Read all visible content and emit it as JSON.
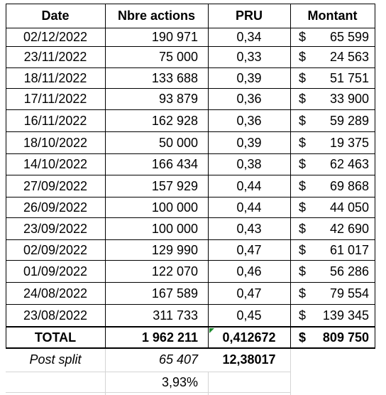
{
  "table": {
    "headers": {
      "date": "Date",
      "actions": "Nbre actions",
      "pru": "PRU",
      "montant": "Montant"
    },
    "currency_symbol": "$",
    "rows": [
      {
        "date": "02/12/2022",
        "actions": "190 971",
        "pru": "0,34",
        "montant": "65 599"
      },
      {
        "date": "23/11/2022",
        "actions": "75 000",
        "pru": "0,33",
        "montant": "24 563"
      },
      {
        "date": "18/11/2022",
        "actions": "133 688",
        "pru": "0,39",
        "montant": "51 751"
      },
      {
        "date": "17/11/2022",
        "actions": "93 879",
        "pru": "0,36",
        "montant": "33 900"
      },
      {
        "date": "16/11/2022",
        "actions": "162 928",
        "pru": "0,36",
        "montant": "59 289"
      },
      {
        "date": "18/10/2022",
        "actions": "50 000",
        "pru": "0,39",
        "montant": "19 375"
      },
      {
        "date": "14/10/2022",
        "actions": "166 434",
        "pru": "0,38",
        "montant": "62 463"
      },
      {
        "date": "27/09/2022",
        "actions": "157 929",
        "pru": "0,44",
        "montant": "69 868"
      },
      {
        "date": "26/09/2022",
        "actions": "100 000",
        "pru": "0,44",
        "montant": "44 050"
      },
      {
        "date": "23/09/2022",
        "actions": "100 000",
        "pru": "0,43",
        "montant": "42 690"
      },
      {
        "date": "02/09/2022",
        "actions": "129 990",
        "pru": "0,47",
        "montant": "61 017"
      },
      {
        "date": "01/09/2022",
        "actions": "122 070",
        "pru": "0,46",
        "montant": "56 286"
      },
      {
        "date": "24/08/2022",
        "actions": "167 589",
        "pru": "0,47",
        "montant": "79 554"
      },
      {
        "date": "23/08/2022",
        "actions": "311 733",
        "pru": "0,45",
        "montant": "139 345"
      }
    ],
    "total": {
      "label": "TOTAL",
      "actions": "1 962 211",
      "pru": "0,412672",
      "montant": "809 750"
    },
    "post_split": {
      "label": "Post split",
      "actions": "65 407",
      "pru": "12,38017"
    },
    "percentage": "3,93%"
  },
  "colors": {
    "border": "#000000",
    "gridline": "#d4d4d4",
    "comment_marker": "#1e8c2e"
  }
}
